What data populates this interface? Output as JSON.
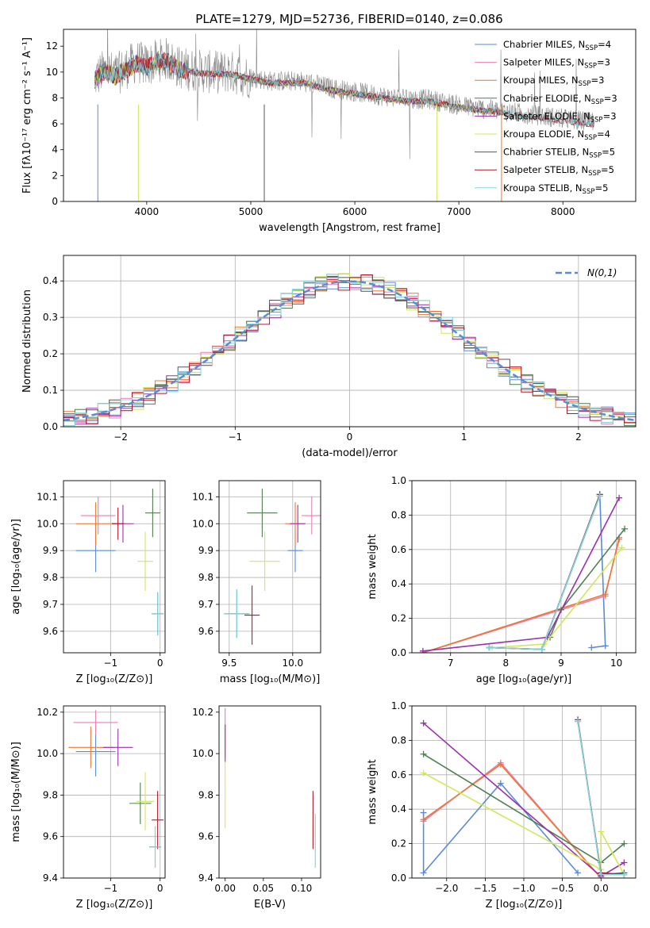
{
  "figure": {
    "title": "PLATE=1279, MJD=52736, FIBERID=0140, z=0.086"
  },
  "styles": {
    "colors": [
      "#5b8bd6",
      "#e97db4",
      "#ee7733",
      "#4f7f52",
      "#9b2fae",
      "#cfe85b",
      "#555555",
      "#b2182b",
      "#7fd6dc"
    ],
    "gaussian_color": "#5b8bd6",
    "grid_color": "#b0b0b0"
  },
  "chart_data": [
    {
      "id": "spectrum",
      "type": "line",
      "xlabel": "wavelength [Angstrom, rest frame]",
      "ylabel": "Flux [fλ10⁻¹⁷ erg cm⁻² s⁻¹ A⁻¹]",
      "xlim": [
        3200,
        8700
      ],
      "ylim": [
        0,
        13.3
      ],
      "xticks": [
        4000,
        5000,
        6000,
        7000,
        8000
      ],
      "yticks": [
        0,
        2,
        4,
        6,
        8,
        10,
        12
      ],
      "grid": false,
      "legend_position": "top-right",
      "legend": [
        {
          "base": "Chabrier MILES, N",
          "sub": "SSP",
          "tail": "=4"
        },
        {
          "base": "Salpeter MILES, N",
          "sub": "SSP",
          "tail": "=3"
        },
        {
          "base": "Kroupa MILES, N",
          "sub": "SSP",
          "tail": "=3"
        },
        {
          "base": "Chabrier ELODIE, N",
          "sub": "SSP",
          "tail": "=3"
        },
        {
          "base": "Salpeter ELODIE, N",
          "sub": "SSP",
          "tail": "=3"
        },
        {
          "base": "Kroupa ELODIE, N",
          "sub": "SSP",
          "tail": "=4"
        },
        {
          "base": "Chabrier STELIB, N",
          "sub": "SSP",
          "tail": "=5"
        },
        {
          "base": "Salpeter STELIB, N",
          "sub": "SSP",
          "tail": "=5"
        },
        {
          "base": "Kroupa STELIB, N",
          "sub": "SSP",
          "tail": "=5"
        }
      ],
      "data_envelope": {
        "x": [
          3500,
          3600,
          3700,
          3800,
          3900,
          4000,
          4100,
          4200,
          4300,
          4400,
          4600,
          4800,
          5000,
          5200,
          5500,
          5800,
          6000,
          6300,
          6500,
          6700,
          6900,
          7100,
          7300,
          7500,
          7800,
          8000,
          8300
        ],
        "y": [
          9.5,
          10.2,
          9.8,
          10.3,
          10.8,
          10.5,
          10.9,
          11.0,
          10.4,
          10.2,
          10.0,
          10.0,
          9.6,
          9.3,
          9.3,
          8.7,
          8.5,
          8.1,
          7.9,
          7.9,
          7.6,
          7.3,
          7.1,
          6.9,
          6.6,
          6.4,
          6.1
        ]
      }
    },
    {
      "id": "residuals",
      "type": "step",
      "xlabel": "(data-model)/error",
      "ylabel": "Normed distribution",
      "xlim": [
        -2.5,
        2.5
      ],
      "ylim": [
        0,
        0.47
      ],
      "xticks": [
        -2,
        -1,
        0,
        1,
        2
      ],
      "yticks": [
        0.0,
        0.1,
        0.2,
        0.3,
        0.4
      ],
      "grid": true,
      "legend_position": "top-right",
      "legend": "N(0,1)",
      "gaussian": {
        "mean": 0,
        "sigma": 1
      }
    },
    {
      "id": "age_vs_z",
      "type": "errorbar",
      "xlabel": "Z [log₁₀(Z/Z⊙)]",
      "ylabel": "age  [log₁₀(age/yr)]",
      "xlim": [
        -1.95,
        0.1
      ],
      "ylim": [
        9.52,
        10.16
      ],
      "xticks": [
        -1,
        0
      ],
      "yticks": [
        9.6,
        9.7,
        9.8,
        9.9,
        10.0,
        10.1
      ],
      "grid": true,
      "points": [
        {
          "x": -1.3,
          "y": 9.9,
          "xerr": 0.4,
          "yerr": 0.08,
          "c": 0
        },
        {
          "x": -1.25,
          "y": 10.03,
          "xerr": 0.35,
          "yerr": 0.07,
          "c": 1
        },
        {
          "x": -1.3,
          "y": 10.0,
          "xerr": 0.4,
          "yerr": 0.08,
          "c": 2
        },
        {
          "x": -0.15,
          "y": 10.04,
          "xerr": 0.15,
          "yerr": 0.09,
          "c": 3
        },
        {
          "x": -0.75,
          "y": 10.0,
          "xerr": 0.22,
          "yerr": 0.07,
          "c": 4
        },
        {
          "x": -0.3,
          "y": 9.86,
          "xerr": 0.16,
          "yerr": 0.11,
          "c": 5
        },
        {
          "x": -0.05,
          "y": 9.665,
          "xerr": 0.12,
          "yerr": 0.08,
          "c": 6
        },
        {
          "x": -0.85,
          "y": 10.0,
          "xerr": 0.12,
          "yerr": 0.06,
          "c": 7
        },
        {
          "x": -0.05,
          "y": 9.665,
          "xerr": 0.12,
          "yerr": 0.08,
          "c": 8
        }
      ]
    },
    {
      "id": "age_vs_mass",
      "type": "errorbar",
      "xlabel": "mass [log₁₀(M/M⊙)]",
      "ylabel": "",
      "xlim": [
        9.42,
        10.22
      ],
      "ylim": [
        9.52,
        10.16
      ],
      "xticks": [
        9.5,
        10.0
      ],
      "yticks": [
        9.6,
        9.7,
        9.8,
        9.9,
        10.0,
        10.1
      ],
      "grid": true,
      "points": [
        {
          "x": 10.02,
          "y": 9.9,
          "xerr": 0.06,
          "yerr": 0.08,
          "c": 0
        },
        {
          "x": 10.15,
          "y": 10.03,
          "xerr": 0.08,
          "yerr": 0.07,
          "c": 1
        },
        {
          "x": 10.02,
          "y": 10.0,
          "xerr": 0.08,
          "yerr": 0.08,
          "c": 2
        },
        {
          "x": 9.76,
          "y": 10.04,
          "xerr": 0.12,
          "yerr": 0.09,
          "c": 3
        },
        {
          "x": 10.04,
          "y": 10.0,
          "xerr": 0.06,
          "yerr": 0.07,
          "c": 4
        },
        {
          "x": 9.78,
          "y": 9.86,
          "xerr": 0.12,
          "yerr": 0.11,
          "c": 5
        },
        {
          "x": 9.56,
          "y": 9.665,
          "xerr": 0.1,
          "yerr": 0.09,
          "c": 6
        },
        {
          "x": 9.68,
          "y": 9.66,
          "xerr": 0.06,
          "yerr": 0.11,
          "c": 7
        },
        {
          "x": 9.56,
          "y": 9.665,
          "xerr": 0.1,
          "yerr": 0.09,
          "c": 8
        }
      ]
    },
    {
      "id": "weight_vs_age",
      "type": "line",
      "xlabel": "age  [log₁₀(age/yr)]",
      "ylabel": "mass weight",
      "xlim": [
        6.3,
        10.35
      ],
      "ylim": [
        0,
        1.0
      ],
      "xticks": [
        7,
        8,
        9,
        10
      ],
      "yticks": [
        0.0,
        0.2,
        0.4,
        0.6,
        0.8,
        1.0
      ],
      "grid": true,
      "series": [
        {
          "c": 0,
          "x": [
            9.55,
            9.8,
            9.7
          ],
          "y": [
            0.03,
            0.04,
            0.92
          ]
        },
        {
          "c": 1,
          "x": [
            6.5,
            9.8,
            10.05
          ],
          "y": [
            0.0,
            0.33,
            0.67
          ]
        },
        {
          "c": 2,
          "x": [
            6.5,
            9.8,
            10.05
          ],
          "y": [
            0.0,
            0.34,
            0.66
          ]
        },
        {
          "c": 3,
          "x": [
            8.8,
            9.0,
            10.15
          ],
          "y": [
            0.09,
            0.25,
            0.72
          ]
        },
        {
          "c": 4,
          "x": [
            6.5,
            8.75,
            10.05
          ],
          "y": [
            0.01,
            0.09,
            0.9
          ]
        },
        {
          "c": 5,
          "x": [
            7.75,
            8.7,
            10.1
          ],
          "y": [
            0.03,
            0.05,
            0.61
          ]
        },
        {
          "c": 6,
          "x": [
            7.7,
            8.65,
            9.7
          ],
          "y": [
            0.03,
            0.02,
            0.92
          ]
        },
        {
          "c": 7,
          "x": [
            7.7,
            8.65,
            9.7
          ],
          "y": [
            0.03,
            0.02,
            0.91
          ]
        },
        {
          "c": 8,
          "x": [
            7.7,
            8.65,
            9.7
          ],
          "y": [
            0.03,
            0.02,
            0.91
          ]
        }
      ]
    },
    {
      "id": "mass_vs_z",
      "type": "errorbar",
      "xlabel": "Z [log₁₀(Z/Z⊙)]",
      "ylabel": "mass [log₁₀(M/M⊙)]",
      "xlim": [
        -1.95,
        0.1
      ],
      "ylim": [
        9.4,
        10.23
      ],
      "xticks": [
        -1,
        0
      ],
      "yticks": [
        9.4,
        9.6,
        9.8,
        10.0,
        10.2
      ],
      "grid": true,
      "points": [
        {
          "x": -1.3,
          "y": 10.01,
          "xerr": 0.4,
          "yerr": 0.12,
          "c": 0
        },
        {
          "x": -1.3,
          "y": 10.15,
          "xerr": 0.45,
          "yerr": 0.06,
          "c": 1
        },
        {
          "x": -1.4,
          "y": 10.03,
          "xerr": 0.45,
          "yerr": 0.1,
          "c": 2
        },
        {
          "x": -0.4,
          "y": 9.76,
          "xerr": 0.22,
          "yerr": 0.1,
          "c": 3
        },
        {
          "x": -0.85,
          "y": 10.03,
          "xerr": 0.3,
          "yerr": 0.09,
          "c": 4
        },
        {
          "x": -0.3,
          "y": 9.77,
          "xerr": 0.18,
          "yerr": 0.14,
          "c": 5
        },
        {
          "x": -0.1,
          "y": 9.55,
          "xerr": 0.12,
          "yerr": 0.1,
          "c": 6
        },
        {
          "x": -0.05,
          "y": 9.68,
          "xerr": 0.12,
          "yerr": 0.14,
          "c": 7
        },
        {
          "x": -0.1,
          "y": 9.55,
          "xerr": 0.12,
          "yerr": 0.1,
          "c": 8
        }
      ]
    },
    {
      "id": "mass_vs_ebv",
      "type": "errorbar",
      "xlabel": "E(B-V)",
      "ylabel": "",
      "xlim": [
        -0.008,
        0.125
      ],
      "ylim": [
        9.4,
        10.23
      ],
      "xticks": [
        0.0,
        0.05,
        0.1
      ],
      "yticks": [
        9.4,
        9.6,
        9.8,
        10.0,
        10.2
      ],
      "grid": false,
      "points": [
        {
          "x": 0.0,
          "y": 10.1,
          "xerr": 0,
          "yerr": 0.12,
          "c": 1
        },
        {
          "x": 0.0,
          "y": 10.05,
          "xerr": 0,
          "yerr": 0.09,
          "c": 4
        },
        {
          "x": 0.0,
          "y": 9.8,
          "xerr": 0,
          "yerr": 0.16,
          "c": 5
        },
        {
          "x": 0.115,
          "y": 9.68,
          "xerr": 0,
          "yerr": 0.14,
          "c": 7
        },
        {
          "x": 0.118,
          "y": 9.58,
          "xerr": 0,
          "yerr": 0.13,
          "c": 8
        }
      ]
    },
    {
      "id": "weight_vs_z",
      "type": "line",
      "xlabel": "Z [log₁₀(Z/Z⊙)]",
      "ylabel": "mass weight",
      "xlim": [
        -2.45,
        0.45
      ],
      "ylim": [
        0,
        1.0
      ],
      "xticks": [
        -2.0,
        -1.5,
        -1.0,
        -0.5,
        0.0
      ],
      "yticks": [
        0.0,
        0.2,
        0.4,
        0.6,
        0.8,
        1.0
      ],
      "grid": true,
      "series": [
        {
          "c": 0,
          "x": [
            -2.3,
            -2.3,
            -1.3,
            -0.3
          ],
          "y": [
            0.38,
            0.03,
            0.55,
            0.03
          ]
        },
        {
          "c": 1,
          "x": [
            -2.3,
            -1.3,
            0.0
          ],
          "y": [
            0.33,
            0.67,
            0.0
          ]
        },
        {
          "c": 2,
          "x": [
            -2.3,
            -1.3,
            0.0
          ],
          "y": [
            0.34,
            0.66,
            0.0
          ]
        },
        {
          "c": 3,
          "x": [
            -2.3,
            0.0,
            0.3
          ],
          "y": [
            0.72,
            0.09,
            0.2
          ]
        },
        {
          "c": 4,
          "x": [
            -2.3,
            0.0,
            0.3
          ],
          "y": [
            0.9,
            0.01,
            0.09
          ]
        },
        {
          "c": 5,
          "x": [
            -2.3,
            0.0,
            0.0,
            0.3
          ],
          "y": [
            0.61,
            0.05,
            0.27,
            0.02
          ]
        },
        {
          "c": 6,
          "x": [
            -0.3,
            0.0,
            0.3
          ],
          "y": [
            0.92,
            0.02,
            0.03
          ]
        },
        {
          "c": 7,
          "x": [
            -0.3,
            0.0,
            0.3
          ],
          "y": [
            0.91,
            0.03,
            0.02
          ]
        },
        {
          "c": 8,
          "x": [
            -0.3,
            0.0,
            0.3
          ],
          "y": [
            0.91,
            0.02,
            0.02
          ]
        }
      ]
    }
  ]
}
